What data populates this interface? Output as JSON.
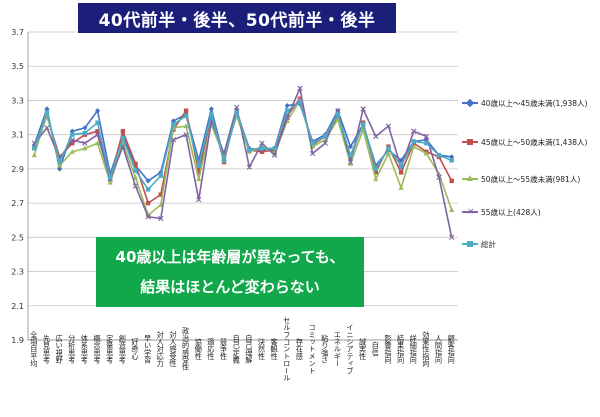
{
  "banner": {
    "title": "40代前半・後半、50代前半・後半"
  },
  "callout": {
    "line1": "40歳以上は年齢層が異なっても、",
    "line2": "結果はほとんど変わらない"
  },
  "chart_data": {
    "type": "line",
    "ylim": [
      1.9,
      3.7
    ],
    "yticks": [
      "1.9",
      "2.1",
      "2.3",
      "2.5",
      "2.7",
      "2.9",
      "3.1",
      "3.3",
      "3.5",
      "3.7"
    ],
    "grid": true,
    "legend_position": "right",
    "categories": [
      "全項目平均",
      "先見思考",
      "広い視野",
      "分析思考",
      "体系思考",
      "概念思考",
      "定量思考",
      "創造思考",
      "好奇心",
      "早い学習",
      "対人対応力",
      "対人感受性",
      "政治的感受性",
      "協働性",
      "適応性",
      "競争性",
      "自己定義",
      "自己理解",
      "決然性",
      "客観性",
      "セルフコントロール",
      "存在感",
      "コミットメント",
      "粘り強さ",
      "エネルギー",
      "イニシアティブ",
      "誠実性",
      "自信",
      "影響指向",
      "結果指向",
      "詳細指向",
      "効果性指向",
      "人間指向",
      "顧客指向"
    ],
    "series": [
      {
        "name": "40歳以上～45歳未満(1,938人)",
        "color": "#4472c4",
        "marker": "diamond",
        "values": [
          3.04,
          3.25,
          2.9,
          3.12,
          3.14,
          3.24,
          2.87,
          3.09,
          2.92,
          2.83,
          2.88,
          3.18,
          3.22,
          2.95,
          3.25,
          2.96,
          3.23,
          3.02,
          3.01,
          3.02,
          3.27,
          3.28,
          3.06,
          3.1,
          3.24,
          3.03,
          3.16,
          2.92,
          3.01,
          2.95,
          3.06,
          3.07,
          2.98,
          2.97
        ]
      },
      {
        "name": "45歳以上～50歳未満(1,438人)",
        "color": "#c0504d",
        "marker": "square",
        "values": [
          3.02,
          3.21,
          2.97,
          3.05,
          3.1,
          3.12,
          2.84,
          3.12,
          2.93,
          2.7,
          2.75,
          3.13,
          3.24,
          2.88,
          3.21,
          2.94,
          3.24,
          3.01,
          3.0,
          3.01,
          3.21,
          3.31,
          3.04,
          3.09,
          3.2,
          2.96,
          3.17,
          2.88,
          3.03,
          2.88,
          3.05,
          3.0,
          2.97,
          2.83
        ]
      },
      {
        "name": "50歳以上～55歳未満(981人)",
        "color": "#9bbb59",
        "marker": "triangle",
        "values": [
          2.98,
          3.22,
          2.92,
          3.0,
          3.02,
          3.05,
          2.82,
          3.05,
          2.85,
          2.63,
          2.69,
          3.14,
          3.15,
          2.84,
          3.16,
          2.97,
          3.21,
          3.0,
          3.03,
          2.99,
          3.18,
          3.3,
          3.03,
          3.07,
          3.19,
          2.93,
          3.13,
          2.84,
          2.99,
          2.79,
          3.03,
          2.99,
          2.87,
          2.66
        ]
      },
      {
        "name": "55歳以上(428人)",
        "color": "#8064a2",
        "marker": "cross",
        "values": [
          3.05,
          3.14,
          2.96,
          3.07,
          3.05,
          3.1,
          2.84,
          3.03,
          2.8,
          2.62,
          2.61,
          3.07,
          3.1,
          2.72,
          3.18,
          2.99,
          3.26,
          2.91,
          3.05,
          2.98,
          3.2,
          3.37,
          2.99,
          3.05,
          3.24,
          2.94,
          3.25,
          3.09,
          3.15,
          2.91,
          3.12,
          3.09,
          2.85,
          2.5
        ]
      },
      {
        "name": "総計",
        "color": "#4bacc6",
        "marker": "square",
        "values": [
          3.02,
          3.23,
          2.94,
          3.1,
          3.11,
          3.17,
          2.85,
          3.08,
          2.89,
          2.78,
          2.86,
          3.16,
          3.21,
          2.92,
          3.22,
          2.95,
          3.23,
          3.01,
          3.02,
          3.02,
          3.24,
          3.29,
          3.05,
          3.09,
          3.22,
          2.98,
          3.16,
          2.9,
          3.02,
          2.92,
          3.06,
          3.05,
          2.98,
          2.95
        ]
      }
    ]
  }
}
